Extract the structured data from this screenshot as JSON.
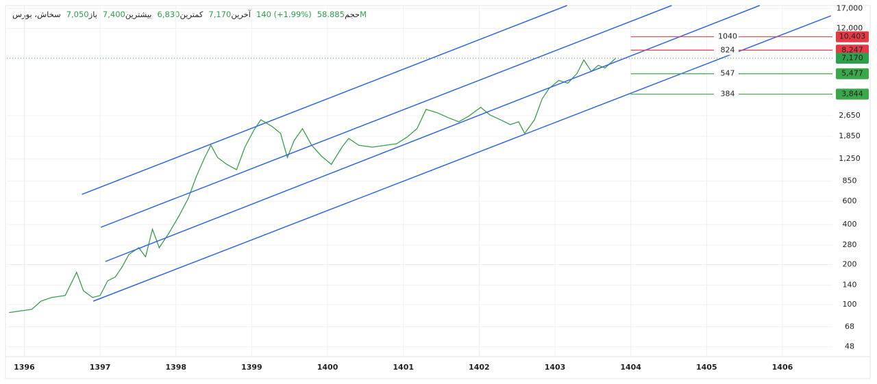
{
  "header": {
    "symbol": "سخاش، بورس",
    "items": [
      {
        "label": "باز",
        "value": "7,050"
      },
      {
        "label": "بیشترین",
        "value": "7,400"
      },
      {
        "label": "کمترین",
        "value": "6,830"
      },
      {
        "label": "آخرین",
        "value": "7,170"
      }
    ],
    "change": "140 (+1.99%)",
    "volume_label": "حجم",
    "volume": "58.885M"
  },
  "chart_data": {
    "type": "line",
    "log_scale": true,
    "grid": true,
    "color": "#3a9c4a",
    "xlim": [
      1395.77,
      1406.66
    ],
    "xticks": [
      1396,
      1397,
      1398,
      1399,
      1400,
      1401,
      1402,
      1403,
      1404,
      1405,
      1406
    ],
    "ylim": [
      41,
      17900
    ],
    "yticks": [
      48,
      68,
      100,
      140,
      200,
      280,
      400,
      600,
      850,
      {
        "value": 1250,
        "label": "1,250"
      },
      {
        "value": 1850,
        "label": "1,850"
      },
      {
        "value": 2650,
        "label": "2,650"
      },
      {
        "value": 12000,
        "label": "12,000"
      },
      {
        "value": 17000,
        "label": "17,000"
      }
    ],
    "x": [
      1395.8,
      1396.1,
      1396.22,
      1396.36,
      1396.54,
      1396.69,
      1396.78,
      1396.9,
      1397.0,
      1397.1,
      1397.2,
      1397.29,
      1397.38,
      1397.51,
      1397.6,
      1397.69,
      1397.78,
      1397.91,
      1398.04,
      1398.16,
      1398.27,
      1398.38,
      1398.46,
      1398.55,
      1398.67,
      1398.8,
      1398.91,
      1399.03,
      1399.12,
      1399.27,
      1399.38,
      1399.47,
      1399.56,
      1399.67,
      1399.79,
      1399.92,
      1400.05,
      1400.19,
      1400.28,
      1400.41,
      1400.59,
      1400.77,
      1400.91,
      1401.05,
      1401.18,
      1401.3,
      1401.45,
      1401.59,
      1401.73,
      1401.86,
      1402.02,
      1402.14,
      1402.28,
      1402.41,
      1402.52,
      1402.6,
      1402.73,
      1402.83,
      1402.92,
      1403.05,
      1403.17,
      1403.29,
      1403.38,
      1403.48,
      1403.57,
      1403.66,
      1403.8
    ],
    "values": [
      87,
      92,
      106,
      113,
      117,
      175,
      127,
      113,
      117,
      151,
      161,
      192,
      238,
      268,
      229,
      369,
      268,
      347,
      465,
      627,
      922,
      1281,
      1587,
      1281,
      1138,
      1036,
      1532,
      2063,
      2467,
      2190,
      1945,
      1281,
      1723,
      2113,
      1587,
      1312,
      1138,
      1532,
      1785,
      1587,
      1532,
      1587,
      1626,
      1828,
      2113,
      2953,
      2781,
      2560,
      2382,
      2621,
      3060,
      2684,
      2467,
      2268,
      2382,
      1945,
      2467,
      3540,
      4230,
      4879,
      4650,
      5500,
      6960,
      5700,
      6340,
      6050,
      7170
    ],
    "channel_color": "#2f66e0",
    "channel_lines": [
      {
        "x": [
          1396.76,
          1403.16
        ],
        "y": [
          676,
          17900
        ]
      },
      {
        "x": [
          1397.01,
          1404.54
        ],
        "y": [
          382,
          17900
        ]
      },
      {
        "x": [
          1397.07,
          1405.7
        ],
        "y": [
          211,
          17900
        ]
      },
      {
        "x": [
          1396.91,
          1406.64
        ],
        "y": [
          106,
          14970
        ]
      }
    ],
    "levels": [
      {
        "value": 10403,
        "value_label": "10,403",
        "label": "1040",
        "color": "#e53a45"
      },
      {
        "value": 8247,
        "value_label": "8,247",
        "label": "824",
        "color": "#e53a45"
      },
      {
        "value": 5477,
        "value_label": "5,477",
        "label": "547",
        "color": "#3aa84a"
      },
      {
        "value": 3844,
        "value_label": "3,844",
        "label": "384",
        "color": "#3aa84a"
      }
    ],
    "levels_start": 1404.0,
    "last": {
      "value": 7170,
      "value_label": "7,170",
      "color": "#2e9e4f"
    }
  }
}
